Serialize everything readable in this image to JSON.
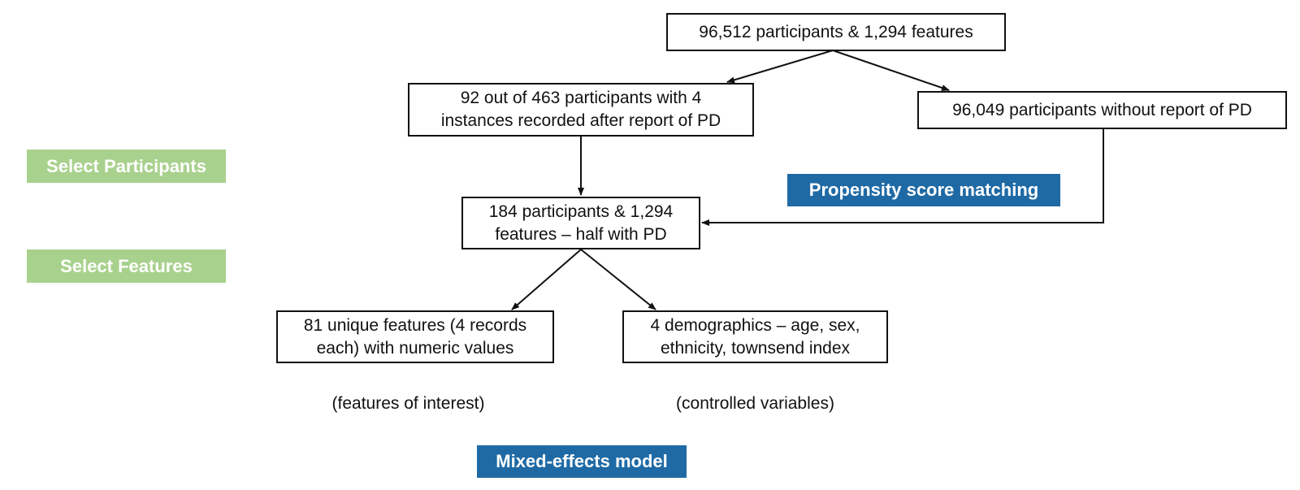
{
  "stages": {
    "select_participants": "Select Participants",
    "select_features": "Select Features"
  },
  "methods": {
    "propensity": "Propensity score matching",
    "mixed_effects": "Mixed-effects model"
  },
  "boxes": {
    "top": "96,512 participants & 1,294 features",
    "pd_line1": "92 out of 463 participants with 4",
    "pd_line2": "instances recorded after report of PD",
    "no_pd": "96,049 participants without report of PD",
    "matched_line1": "184 participants & 1,294",
    "matched_line2": "features – half with PD",
    "features_line1": "81 unique features (4 records",
    "features_line2": "each) with numeric values",
    "demo_line1": "4 demographics – age, sex,",
    "demo_line2": "ethnicity, townsend index"
  },
  "notes": {
    "features_of_interest": "(features of interest)",
    "controlled_variables": "(controlled variables)"
  },
  "colors": {
    "stage_green": "#a9d18e",
    "method_blue": "#1f6aa5",
    "border": "#111111"
  }
}
